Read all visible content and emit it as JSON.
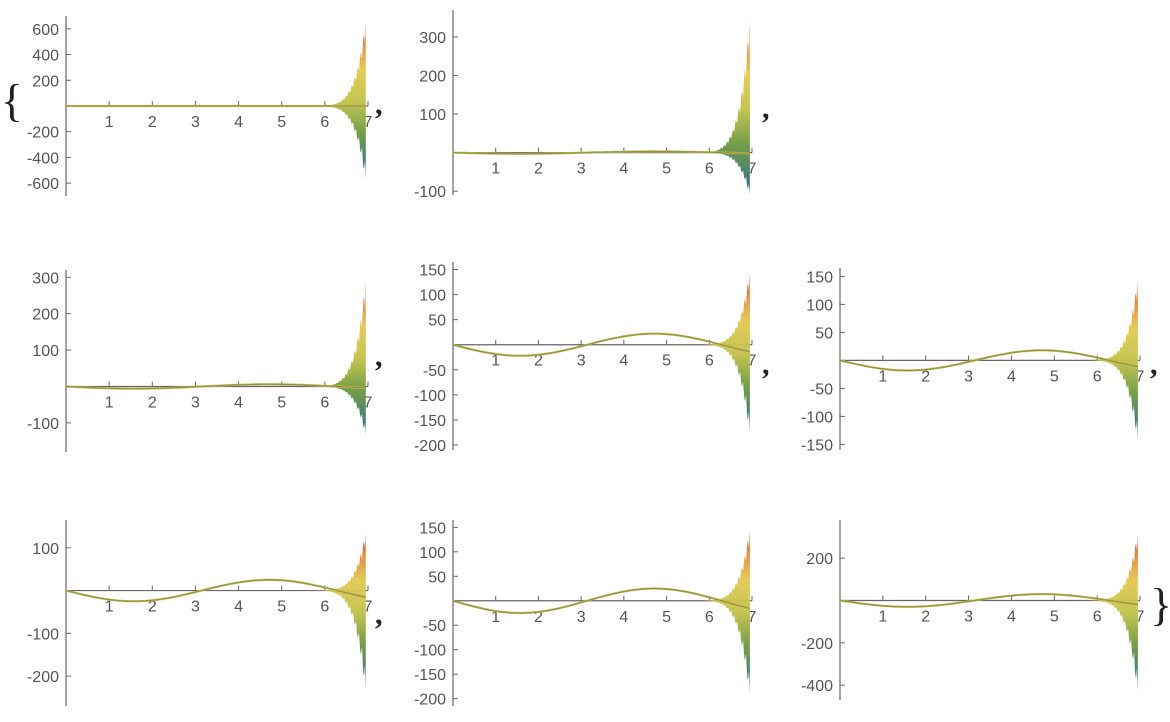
{
  "list_open_brace": "{",
  "list_close_brace": "}",
  "separators": [
    ",",
    ",",
    ",",
    ",",
    ",",
    ","
  ],
  "chart_data": [
    {
      "type": "line",
      "title": "",
      "xlabel": "",
      "ylabel": "",
      "xlim": [
        0,
        7
      ],
      "ylim": [
        -700,
        700
      ],
      "xticks": [
        "1",
        "2",
        "3",
        "4",
        "5",
        "6",
        "7"
      ],
      "yticks": [
        "600",
        "400",
        "200",
        "",
        "-200",
        "-400",
        "-600"
      ],
      "ytick_values": [
        600,
        400,
        200,
        0,
        -200,
        -400,
        -600
      ],
      "base_amplitude": 0,
      "base_phase_shift": 0,
      "spike_top": 680,
      "spike_bottom": -600,
      "grid": false
    },
    {
      "type": "line",
      "title": "",
      "xlabel": "",
      "ylabel": "",
      "xlim": [
        0,
        7
      ],
      "ylim": [
        -110,
        370
      ],
      "xticks": [
        "1",
        "2",
        "3",
        "4",
        "5",
        "6",
        "7"
      ],
      "yticks": [
        "300",
        "200",
        "100",
        "",
        "-100"
      ],
      "ytick_values": [
        300,
        200,
        100,
        0,
        -100
      ],
      "base_amplitude": 3,
      "base_phase_shift": 0,
      "spike_top": 355,
      "spike_bottom": -115,
      "grid": false
    },
    {
      "type": "line",
      "title": "",
      "xlabel": "",
      "ylabel": "",
      "xlim": [
        0,
        7
      ],
      "ylim": [
        -180,
        320
      ],
      "xticks": [
        "1",
        "2",
        "3",
        "4",
        "5",
        "6",
        "7"
      ],
      "yticks": [
        "300",
        "200",
        "100",
        "",
        "-100"
      ],
      "ytick_values": [
        300,
        200,
        100,
        0,
        -100
      ],
      "base_amplitude": 6,
      "base_phase_shift": 0,
      "spike_top": 300,
      "spike_bottom": -140,
      "grid": false
    },
    {
      "type": "line",
      "title": "",
      "xlabel": "",
      "ylabel": "",
      "xlim": [
        0,
        7
      ],
      "ylim": [
        -210,
        165
      ],
      "xticks": [
        "1",
        "2",
        "3",
        "4",
        "5",
        "6",
        "7"
      ],
      "yticks": [
        "150",
        "100",
        "50",
        "",
        "-50",
        "-100",
        "-150",
        "-200"
      ],
      "ytick_values": [
        150,
        100,
        50,
        0,
        -50,
        -100,
        -150,
        -200
      ],
      "base_amplitude": 22,
      "base_phase_shift": 0,
      "spike_top": 150,
      "spike_bottom": -185,
      "grid": false
    },
    {
      "type": "line",
      "title": "",
      "xlabel": "",
      "ylabel": "",
      "xlim": [
        0,
        7
      ],
      "ylim": [
        -160,
        165
      ],
      "xticks": [
        "1",
        "2",
        "3",
        "4",
        "5",
        "6",
        "7"
      ],
      "yticks": [
        "150",
        "100",
        "50",
        "",
        "-50",
        "-100",
        "-150"
      ],
      "ytick_values": [
        150,
        100,
        50,
        0,
        -50,
        -100,
        -150
      ],
      "base_amplitude": 18,
      "base_phase_shift": 0,
      "spike_top": 148,
      "spike_bottom": -150,
      "grid": false
    },
    {
      "type": "line",
      "title": "",
      "xlabel": "",
      "ylabel": "",
      "xlim": [
        0,
        7
      ],
      "ylim": [
        -270,
        165
      ],
      "xticks": [
        "1",
        "2",
        "3",
        "4",
        "5",
        "6",
        "7"
      ],
      "yticks": [
        "100",
        "",
        "-100",
        "-200"
      ],
      "ytick_values": [
        100,
        0,
        -100,
        -200
      ],
      "base_amplitude": 25,
      "base_phase_shift": 0,
      "spike_top": 140,
      "spike_bottom": -245,
      "grid": false
    },
    {
      "type": "line",
      "title": "",
      "xlabel": "",
      "ylabel": "",
      "xlim": [
        0,
        7
      ],
      "ylim": [
        -215,
        165
      ],
      "xticks": [
        "1",
        "2",
        "3",
        "4",
        "5",
        "6",
        "7"
      ],
      "yticks": [
        "150",
        "100",
        "50",
        "",
        "-50",
        "-100",
        "-150",
        "-200"
      ],
      "ytick_values": [
        150,
        100,
        50,
        0,
        -50,
        -100,
        -150,
        -200
      ],
      "base_amplitude": 25,
      "base_phase_shift": 0,
      "spike_top": 150,
      "spike_bottom": -200,
      "grid": false
    },
    {
      "type": "line",
      "title": "",
      "xlabel": "",
      "ylabel": "",
      "xlim": [
        0,
        7
      ],
      "ylim": [
        -470,
        380
      ],
      "xticks": [
        "1",
        "2",
        "3",
        "4",
        "5",
        "6",
        "7"
      ],
      "yticks": [
        "200",
        "",
        "-200",
        "-400"
      ],
      "ytick_values": [
        200,
        0,
        -200,
        -400
      ],
      "base_amplitude": 30,
      "base_phase_shift": 0,
      "spike_top": 330,
      "spike_bottom": -450,
      "grid": false
    }
  ]
}
